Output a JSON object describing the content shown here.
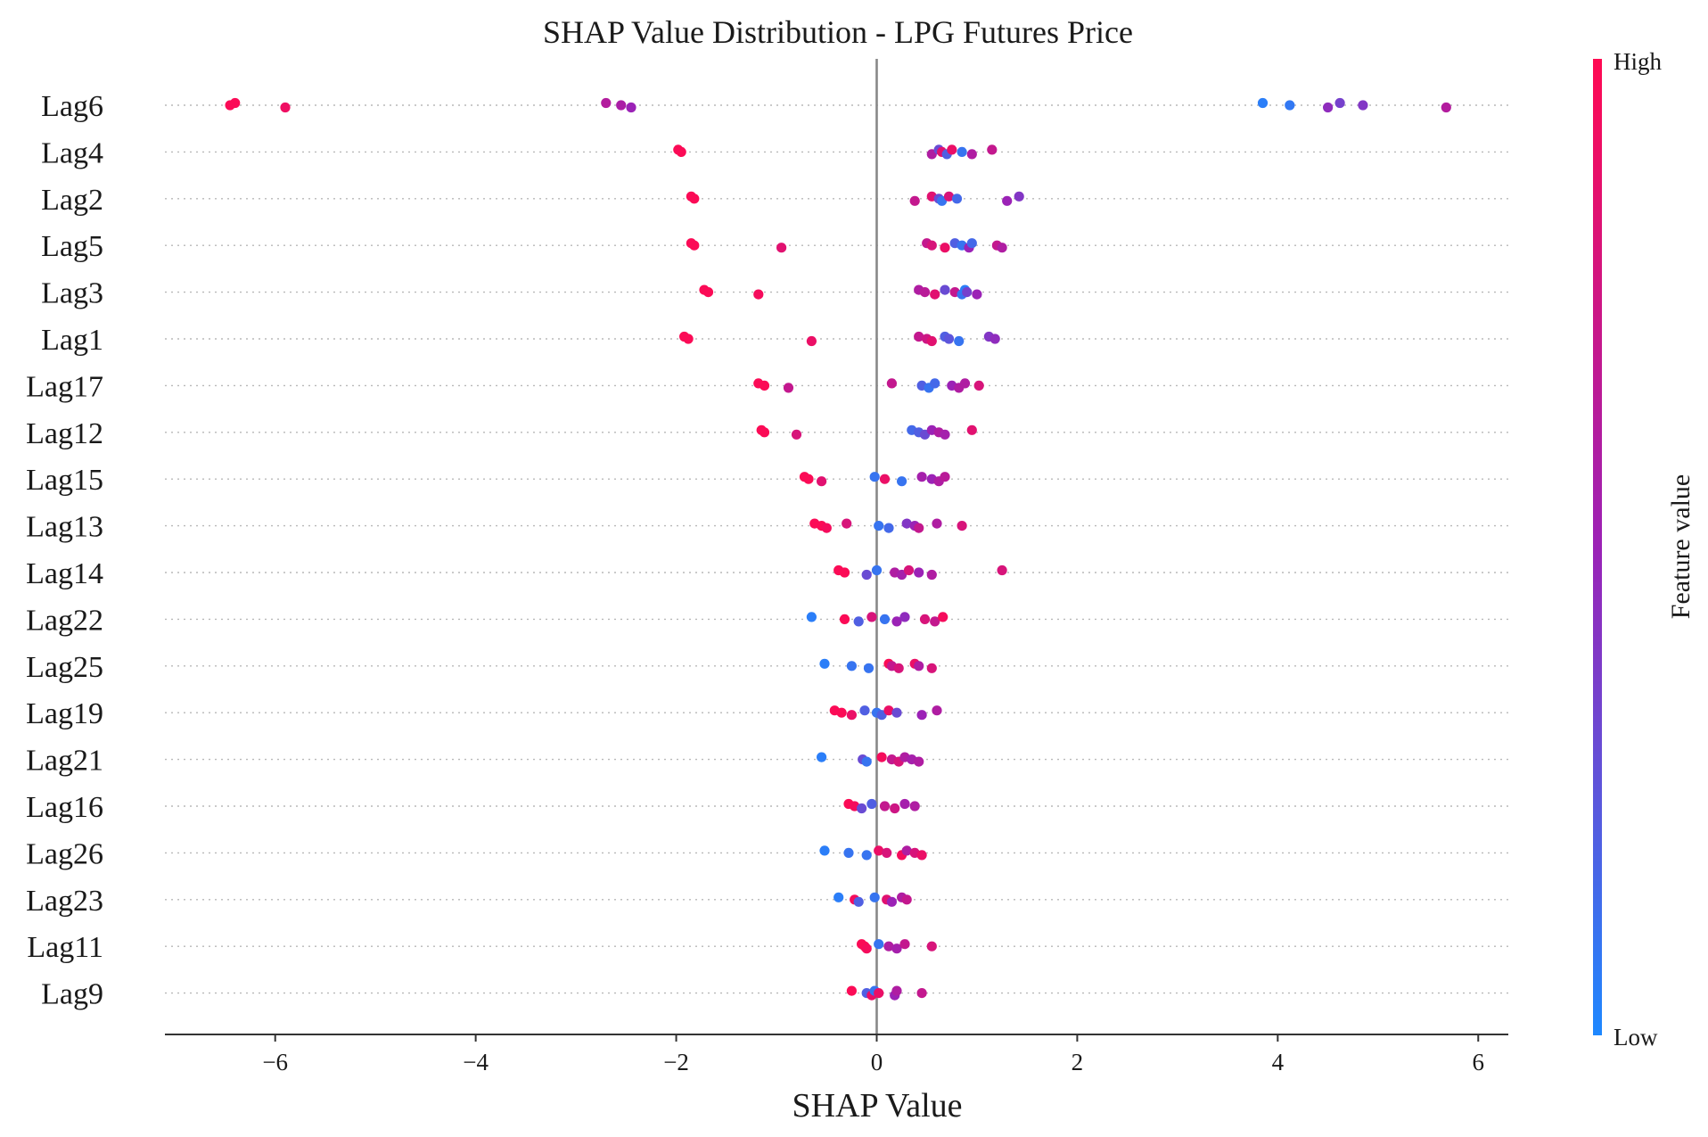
{
  "chart_data": {
    "type": "scatter",
    "subtype": "shap-beeswarm",
    "title": "SHAP Value Distribution - LPG Futures Price",
    "xlabel": "SHAP Value",
    "ylabel": "",
    "xlim": [
      -7.1,
      6.3
    ],
    "xticks": [
      -6,
      -4,
      -2,
      0,
      2,
      4,
      6
    ],
    "xtick_labels": [
      "−6",
      "−4",
      "−2",
      "0",
      "2",
      "4",
      "6"
    ],
    "colorbar": {
      "title": "Feature value",
      "high_label": "High",
      "low_label": "Low",
      "high_color": "#ff0a52",
      "mid_color": "#9b22b6",
      "low_color": "#1e88ff"
    },
    "features": [
      {
        "name": "Lag6",
        "points": [
          [
            -6.4,
            0.98
          ],
          [
            -6.45,
            0.98
          ],
          [
            -5.9,
            0.92
          ],
          [
            -2.7,
            0.62
          ],
          [
            -2.55,
            0.58
          ],
          [
            -2.45,
            0.5
          ],
          [
            3.85,
            0.05
          ],
          [
            4.12,
            0.08
          ],
          [
            4.5,
            0.45
          ],
          [
            4.62,
            0.35
          ],
          [
            4.85,
            0.4
          ],
          [
            5.68,
            0.62
          ]
        ]
      },
      {
        "name": "Lag4",
        "points": [
          [
            -1.98,
            0.98
          ],
          [
            -1.95,
            0.98
          ],
          [
            0.55,
            0.6
          ],
          [
            0.62,
            0.3
          ],
          [
            0.65,
            0.85
          ],
          [
            0.7,
            0.2
          ],
          [
            0.75,
            0.9
          ],
          [
            0.85,
            0.1
          ],
          [
            0.95,
            0.6
          ],
          [
            1.15,
            0.7
          ]
        ]
      },
      {
        "name": "Lag2",
        "points": [
          [
            -1.85,
            0.98
          ],
          [
            -1.82,
            0.98
          ],
          [
            0.38,
            0.7
          ],
          [
            0.55,
            0.85
          ],
          [
            0.62,
            0.3
          ],
          [
            0.65,
            0.1
          ],
          [
            0.72,
            0.8
          ],
          [
            0.8,
            0.15
          ],
          [
            1.3,
            0.5
          ],
          [
            1.42,
            0.4
          ]
        ]
      },
      {
        "name": "Lag5",
        "points": [
          [
            -1.85,
            0.98
          ],
          [
            -1.82,
            0.98
          ],
          [
            -0.95,
            0.85
          ],
          [
            0.5,
            0.7
          ],
          [
            0.55,
            0.8
          ],
          [
            0.68,
            0.9
          ],
          [
            0.78,
            0.2
          ],
          [
            0.85,
            0.1
          ],
          [
            0.92,
            0.5
          ],
          [
            0.95,
            0.15
          ],
          [
            1.2,
            0.7
          ],
          [
            1.25,
            0.6
          ]
        ]
      },
      {
        "name": "Lag3",
        "points": [
          [
            -1.72,
            0.98
          ],
          [
            -1.68,
            0.98
          ],
          [
            -1.18,
            0.95
          ],
          [
            0.42,
            0.6
          ],
          [
            0.48,
            0.65
          ],
          [
            0.58,
            0.85
          ],
          [
            0.68,
            0.3
          ],
          [
            0.78,
            0.7
          ],
          [
            0.85,
            0.1
          ],
          [
            0.88,
            0.05
          ],
          [
            0.9,
            0.35
          ],
          [
            1.0,
            0.5
          ]
        ]
      },
      {
        "name": "Lag1",
        "points": [
          [
            -1.92,
            0.98
          ],
          [
            -1.88,
            0.98
          ],
          [
            -0.65,
            0.9
          ],
          [
            0.42,
            0.7
          ],
          [
            0.5,
            0.75
          ],
          [
            0.55,
            0.85
          ],
          [
            0.68,
            0.2
          ],
          [
            0.72,
            0.25
          ],
          [
            0.82,
            0.1
          ],
          [
            1.12,
            0.4
          ],
          [
            1.18,
            0.45
          ]
        ]
      },
      {
        "name": "Lag17",
        "points": [
          [
            -1.18,
            0.98
          ],
          [
            -1.12,
            0.98
          ],
          [
            -0.88,
            0.7
          ],
          [
            0.15,
            0.7
          ],
          [
            0.45,
            0.2
          ],
          [
            0.52,
            0.1
          ],
          [
            0.58,
            0.15
          ],
          [
            0.75,
            0.5
          ],
          [
            0.82,
            0.6
          ],
          [
            0.88,
            0.6
          ],
          [
            1.02,
            0.8
          ]
        ]
      },
      {
        "name": "Lag12",
        "points": [
          [
            -1.15,
            0.98
          ],
          [
            -1.12,
            0.98
          ],
          [
            -0.8,
            0.8
          ],
          [
            0.35,
            0.15
          ],
          [
            0.42,
            0.2
          ],
          [
            0.48,
            0.3
          ],
          [
            0.55,
            0.5
          ],
          [
            0.62,
            0.6
          ],
          [
            0.68,
            0.55
          ],
          [
            0.95,
            0.85
          ]
        ]
      },
      {
        "name": "Lag15",
        "points": [
          [
            -0.72,
            0.98
          ],
          [
            -0.68,
            0.98
          ],
          [
            -0.55,
            0.85
          ],
          [
            -0.02,
            0.1
          ],
          [
            0.08,
            0.9
          ],
          [
            0.25,
            0.1
          ],
          [
            0.45,
            0.55
          ],
          [
            0.55,
            0.5
          ],
          [
            0.62,
            0.6
          ],
          [
            0.68,
            0.65
          ]
        ]
      },
      {
        "name": "Lag13",
        "points": [
          [
            -0.62,
            0.98
          ],
          [
            -0.55,
            0.98
          ],
          [
            -0.5,
            0.95
          ],
          [
            -0.3,
            0.8
          ],
          [
            0.02,
            0.1
          ],
          [
            0.12,
            0.15
          ],
          [
            0.3,
            0.4
          ],
          [
            0.38,
            0.5
          ],
          [
            0.42,
            0.7
          ],
          [
            0.6,
            0.6
          ],
          [
            0.85,
            0.8
          ]
        ]
      },
      {
        "name": "Lag14",
        "points": [
          [
            -0.38,
            0.98
          ],
          [
            -0.32,
            0.98
          ],
          [
            -0.1,
            0.3
          ],
          [
            0.0,
            0.1
          ],
          [
            0.18,
            0.6
          ],
          [
            0.25,
            0.55
          ],
          [
            0.32,
            0.8
          ],
          [
            0.42,
            0.5
          ],
          [
            0.55,
            0.6
          ],
          [
            1.25,
            0.8
          ]
        ]
      },
      {
        "name": "Lag22",
        "points": [
          [
            -0.65,
            0.05
          ],
          [
            -0.32,
            0.98
          ],
          [
            -0.18,
            0.2
          ],
          [
            -0.05,
            0.8
          ],
          [
            0.08,
            0.1
          ],
          [
            0.2,
            0.5
          ],
          [
            0.28,
            0.45
          ],
          [
            0.48,
            0.8
          ],
          [
            0.58,
            0.7
          ],
          [
            0.66,
            0.95
          ]
        ]
      },
      {
        "name": "Lag25",
        "points": [
          [
            -0.52,
            0.05
          ],
          [
            -0.25,
            0.1
          ],
          [
            -0.08,
            0.1
          ],
          [
            0.12,
            0.98
          ],
          [
            0.15,
            0.7
          ],
          [
            0.22,
            0.8
          ],
          [
            0.38,
            0.9
          ],
          [
            0.42,
            0.6
          ],
          [
            0.55,
            0.8
          ]
        ]
      },
      {
        "name": "Lag19",
        "points": [
          [
            -0.42,
            0.98
          ],
          [
            -0.35,
            0.98
          ],
          [
            -0.25,
            0.9
          ],
          [
            -0.12,
            0.2
          ],
          [
            0.0,
            0.1
          ],
          [
            0.05,
            0.2
          ],
          [
            0.12,
            0.9
          ],
          [
            0.2,
            0.3
          ],
          [
            0.45,
            0.5
          ],
          [
            0.6,
            0.6
          ]
        ]
      },
      {
        "name": "Lag21",
        "points": [
          [
            -0.55,
            0.05
          ],
          [
            -0.14,
            0.3
          ],
          [
            -0.1,
            0.1
          ],
          [
            0.05,
            0.95
          ],
          [
            0.15,
            0.7
          ],
          [
            0.22,
            0.8
          ],
          [
            0.28,
            0.6
          ],
          [
            0.35,
            0.55
          ],
          [
            0.42,
            0.6
          ]
        ]
      },
      {
        "name": "Lag16",
        "points": [
          [
            -0.28,
            0.98
          ],
          [
            -0.22,
            0.95
          ],
          [
            -0.15,
            0.3
          ],
          [
            -0.05,
            0.2
          ],
          [
            0.08,
            0.7
          ],
          [
            0.18,
            0.75
          ],
          [
            0.28,
            0.55
          ],
          [
            0.38,
            0.6
          ]
        ]
      },
      {
        "name": "Lag26",
        "points": [
          [
            -0.52,
            0.05
          ],
          [
            -0.28,
            0.1
          ],
          [
            -0.1,
            0.1
          ],
          [
            0.02,
            0.9
          ],
          [
            0.1,
            0.8
          ],
          [
            0.25,
            0.95
          ],
          [
            0.3,
            0.6
          ],
          [
            0.38,
            0.8
          ],
          [
            0.45,
            0.9
          ]
        ]
      },
      {
        "name": "Lag23",
        "points": [
          [
            -0.38,
            0.05
          ],
          [
            -0.22,
            0.95
          ],
          [
            -0.18,
            0.2
          ],
          [
            -0.02,
            0.1
          ],
          [
            0.1,
            0.85
          ],
          [
            0.15,
            0.5
          ],
          [
            0.25,
            0.6
          ],
          [
            0.3,
            0.7
          ]
        ]
      },
      {
        "name": "Lag11",
        "points": [
          [
            -0.15,
            0.98
          ],
          [
            -0.12,
            0.98
          ],
          [
            -0.1,
            0.95
          ],
          [
            0.02,
            0.1
          ],
          [
            0.12,
            0.6
          ],
          [
            0.2,
            0.55
          ],
          [
            0.28,
            0.7
          ],
          [
            0.55,
            0.8
          ]
        ]
      },
      {
        "name": "Lag9",
        "points": [
          [
            -0.25,
            0.98
          ],
          [
            -0.1,
            0.2
          ],
          [
            -0.05,
            0.9
          ],
          [
            -0.02,
            0.1
          ],
          [
            0.02,
            0.9
          ],
          [
            0.18,
            0.5
          ],
          [
            0.2,
            0.6
          ],
          [
            0.45,
            0.7
          ]
        ]
      }
    ]
  }
}
